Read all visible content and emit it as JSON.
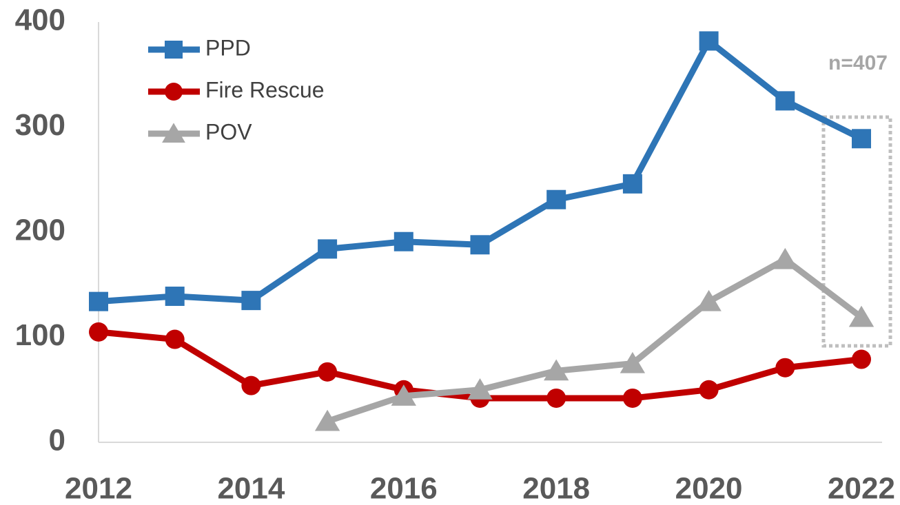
{
  "chart_data": {
    "type": "line",
    "x": [
      2012,
      2013,
      2014,
      2015,
      2016,
      2017,
      2018,
      2019,
      2020,
      2021,
      2022
    ],
    "series": [
      {
        "name": "PPD",
        "color": "#2e75b6",
        "marker": "square",
        "values": [
          134,
          139,
          135,
          184,
          191,
          188,
          231,
          246,
          382,
          325,
          289
        ]
      },
      {
        "name": "Fire Rescue",
        "color": "#c00000",
        "marker": "circle",
        "values": [
          105,
          98,
          54,
          67,
          50,
          42,
          42,
          42,
          50,
          71,
          79
        ]
      },
      {
        "name": "POV",
        "color": "#a6a6a6",
        "marker": "triangle",
        "values": [
          null,
          null,
          null,
          20,
          44,
          50,
          68,
          75,
          134,
          174,
          119
        ]
      }
    ],
    "xlim": [
      2012,
      2022
    ],
    "xticks": [
      2012,
      2014,
      2016,
      2018,
      2020,
      2022
    ],
    "ylim": [
      0,
      400
    ],
    "yticks": [
      0,
      100,
      200,
      300,
      400
    ],
    "annotation": "n=407",
    "legend": "upper left",
    "grid": false
  }
}
